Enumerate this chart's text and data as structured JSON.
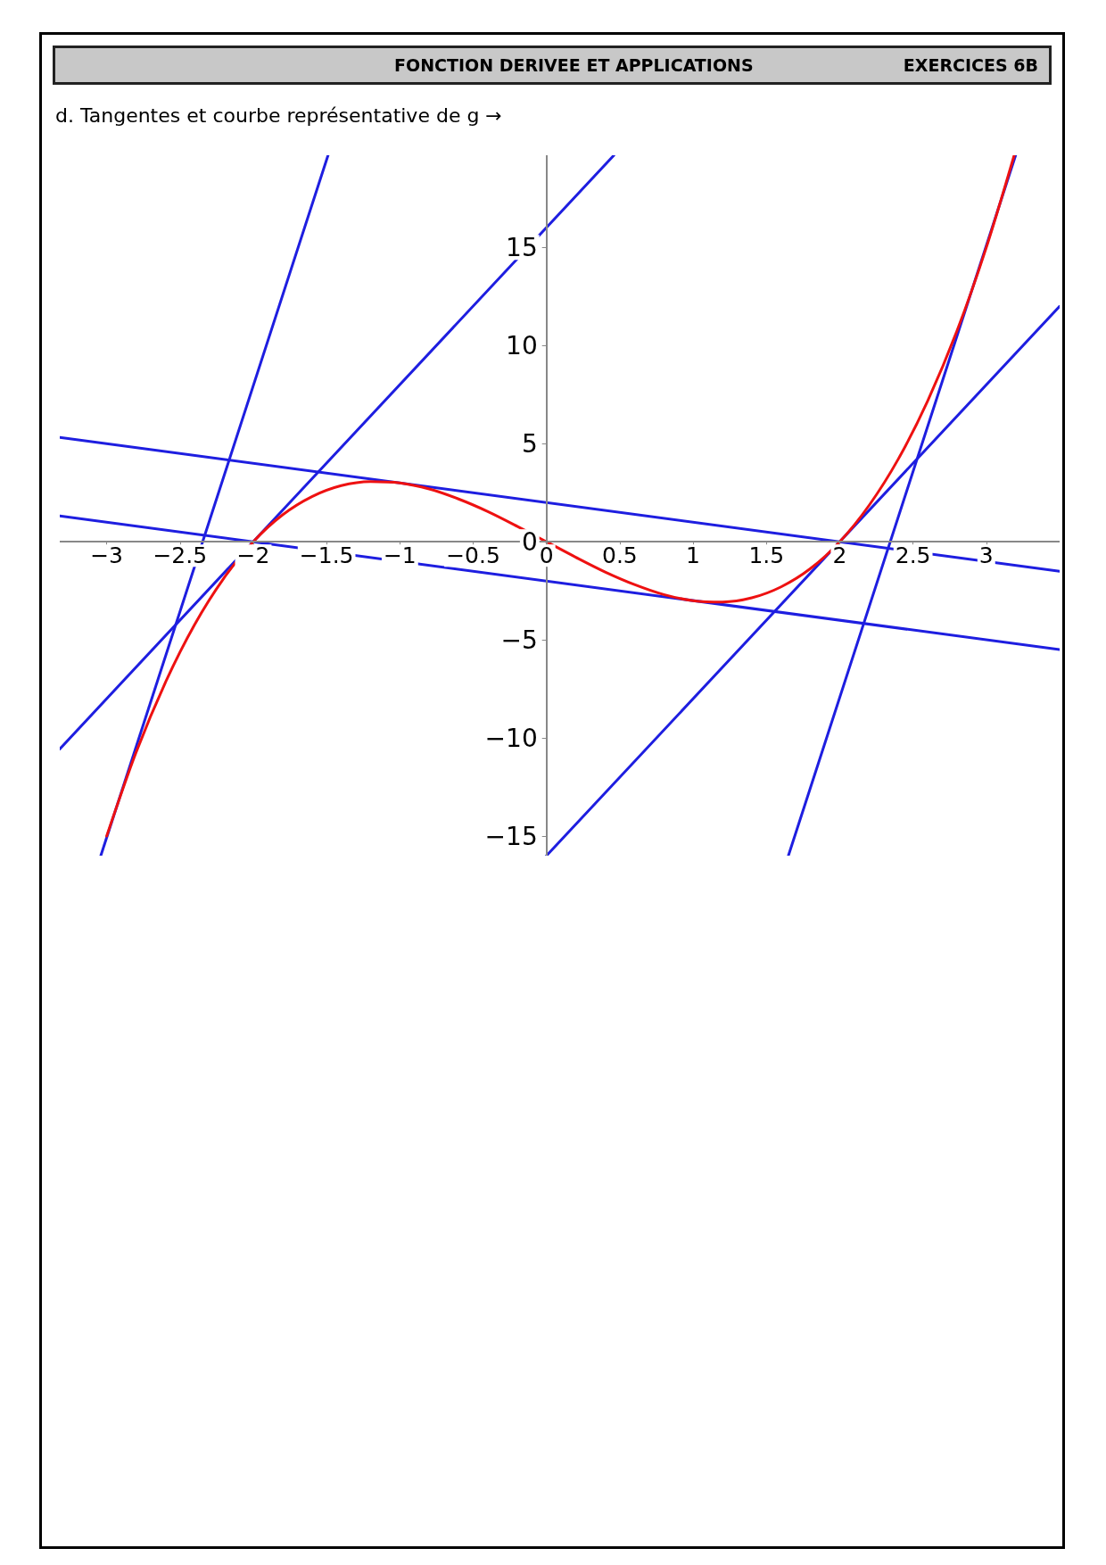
{
  "chart_data": {
    "type": "line",
    "title": "d. Tangentes et courbe représentative de g →",
    "annotations": [
      "FONCTION DERIVEE ET APPLICATIONS",
      "EXERCICES 6B"
    ],
    "xlim": [
      -3.32,
      3.5
    ],
    "xticks": [
      -3,
      -2.5,
      -2,
      -1.5,
      -1,
      -0.5,
      0,
      0.5,
      1,
      1.5,
      2,
      2.5,
      3
    ],
    "ylim": [
      -16,
      19.7
    ],
    "yticks": [
      -15,
      -10,
      -5,
      0,
      5,
      10,
      15
    ],
    "marker": "none",
    "series": [
      {
        "color": "#1e1ee0",
        "x": [
          -3.04,
          -1.49
        ],
        "values": [
          -16,
          19.7
        ]
      },
      {
        "color": "#1e1ee0",
        "x": [
          1.65,
          3.2
        ],
        "values": [
          -16,
          19.7
        ]
      },
      {
        "color": "#1e1ee0",
        "x": [
          -3.32,
          0.46
        ],
        "values": [
          -10.56,
          19.7
        ]
      },
      {
        "color": "#1e1ee0",
        "x": [
          0,
          3.5
        ],
        "values": [
          -16,
          12
        ]
      },
      {
        "color": "#1e1ee0",
        "x": [
          -3.32,
          3.5
        ],
        "values": [
          5.32,
          -1.5
        ]
      },
      {
        "color": "#1e1ee0",
        "x": [
          -3.32,
          3.5
        ],
        "values": [
          1.32,
          -5.5
        ]
      },
      {
        "color": "#ee1111",
        "x": [
          -3,
          -2.8,
          -2.6,
          -2.4,
          -2.2,
          -2,
          -1.8,
          -1.6,
          -1.4,
          -1.2,
          -1,
          -0.8,
          -0.6,
          -0.4,
          -0.2,
          0,
          0.2,
          0.4,
          0.6,
          0.8,
          1,
          1.2,
          1.4,
          1.6,
          1.8,
          2,
          2.2,
          2.4,
          2.6,
          2.8,
          3,
          3.19
        ],
        "values": [
          -15,
          -10.75,
          -7.18,
          -4.22,
          -1.85,
          0,
          1.37,
          2.3,
          2.86,
          3.07,
          3,
          2.69,
          2.18,
          1.54,
          0.79,
          0,
          -0.79,
          -1.54,
          -2.18,
          -2.69,
          -3,
          -3.07,
          -2.86,
          -2.3,
          -1.37,
          0,
          1.85,
          4.22,
          7.18,
          10.75,
          15,
          19.7
        ]
      }
    ]
  }
}
